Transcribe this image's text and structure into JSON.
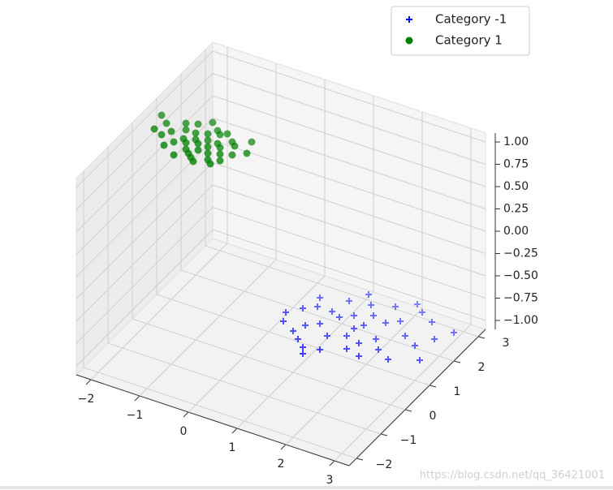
{
  "chart_data": {
    "type": "scatter3d",
    "xlim": [
      -2.3,
      3.3
    ],
    "ylim": [
      -2.3,
      3.3
    ],
    "zlim": [
      -1.1,
      1.1
    ],
    "xticks": [
      {
        "value": -2,
        "label": "−2"
      },
      {
        "value": -1,
        "label": "−1"
      },
      0,
      1,
      2,
      3
    ],
    "yticks": [
      {
        "value": -2,
        "label": "−2"
      },
      {
        "value": -1,
        "label": "−1"
      },
      0,
      1,
      2,
      3
    ],
    "zticks": [
      {
        "value": -1,
        "label": "−1.00"
      },
      {
        "value": -0.75,
        "label": "−0.75"
      },
      {
        "value": -0.5,
        "label": "−0.50"
      },
      {
        "value": -0.25,
        "label": "−0.25"
      },
      {
        "value": 0,
        "label": "0.00"
      },
      {
        "value": 0.25,
        "label": "0.25"
      },
      {
        "value": 0.5,
        "label": "0.50"
      },
      {
        "value": 0.75,
        "label": "0.75"
      },
      {
        "value": 1,
        "label": "1.00"
      }
    ],
    "grid": true,
    "legend": "upper right",
    "watermark": "https://blog.csdn.net/qq_36421001",
    "series": [
      {
        "name": "Category -1",
        "color": "#0000ff",
        "marker": "+",
        "x": [
          1.2,
          0.8,
          1.5,
          2.0,
          0.5,
          1.1,
          1.7,
          2.3,
          0.9,
          1.4,
          0.3,
          1.9,
          2.5,
          0.7,
          1.0,
          1.6,
          2.1,
          0.4,
          1.3,
          2.8,
          0.6,
          1.8,
          1.2,
          2.2,
          0.2,
          1.5,
          0.9,
          2.6,
          1.1,
          0.5,
          1.9,
          2.4,
          0.8,
          1.4,
          3.0,
          0.1,
          1.7,
          2.0,
          1.0,
          2.9
        ],
        "y": [
          2.1,
          1.5,
          1.9,
          2.4,
          1.0,
          1.2,
          2.8,
          2.0,
          2.5,
          1.4,
          1.8,
          1.6,
          2.7,
          0.8,
          1.9,
          1.0,
          1.3,
          2.3,
          2.6,
          2.2,
          1.3,
          2.2,
          0.7,
          2.9,
          1.2,
          2.3,
          0.6,
          1.8,
          2.9,
          2.0,
          0.9,
          1.1,
          2.0,
          1.7,
          2.6,
          1.5,
          1.3,
          3.1,
          0.4,
          1.4
        ],
        "z": [
          -1,
          -1,
          -1,
          -1,
          -1,
          -1,
          -1,
          -1,
          -1,
          -1,
          -1,
          -1,
          -1,
          -1,
          -1,
          -1,
          -1,
          -1,
          -1,
          -1,
          -1,
          -1,
          -1,
          -1,
          -1,
          -1,
          -1,
          -1,
          -1,
          -1,
          -1,
          -1,
          -1,
          -1,
          -1,
          -1,
          -1,
          -1,
          -1,
          -1
        ]
      },
      {
        "name": "Category 1",
        "color": "#008000",
        "marker": "o",
        "x": [
          -1.1,
          -0.8,
          -1.5,
          -1.3,
          -0.6,
          -1.0,
          -1.7,
          -0.9,
          -1.2,
          -0.7,
          -1.4,
          -1.0,
          -0.5,
          -1.6,
          -1.3,
          -0.8,
          -1.1,
          -0.4,
          -1.8,
          -0.9,
          -1.2,
          -0.6,
          -1.5,
          -1.0,
          -0.7,
          -2.1,
          -1.3,
          -0.3,
          -1.9,
          -0.9,
          -1.1,
          -0.5,
          -1.4,
          -0.8,
          -1.6,
          -1.2,
          -0.6,
          -1.0,
          -2.0,
          -0.2
        ],
        "y": [
          0.3,
          0.5,
          0.1,
          0.6,
          0.2,
          -0.2,
          0.4,
          0.8,
          0.0,
          -0.1,
          0.9,
          0.5,
          0.6,
          -0.1,
          0.2,
          0.1,
          0.7,
          0.3,
          0.2,
          -0.3,
          0.4,
          0.7,
          0.6,
          0.1,
          0.4,
          0.8,
          -0.3,
          0.9,
          0.6,
          0.3,
          -0.1,
          0.0,
          0.3,
          0.9,
          0.8,
          1.1,
          -0.2,
          0.9,
          0.3,
          0.5
        ],
        "z": [
          1,
          1,
          1,
          1,
          1,
          1,
          1,
          1,
          1,
          1,
          1,
          1,
          1,
          1,
          1,
          1,
          1,
          1,
          1,
          1,
          1,
          1,
          1,
          1,
          1,
          1,
          1,
          1,
          1,
          1,
          1,
          1,
          1,
          1,
          1,
          1,
          1,
          1,
          1,
          1
        ]
      }
    ]
  }
}
